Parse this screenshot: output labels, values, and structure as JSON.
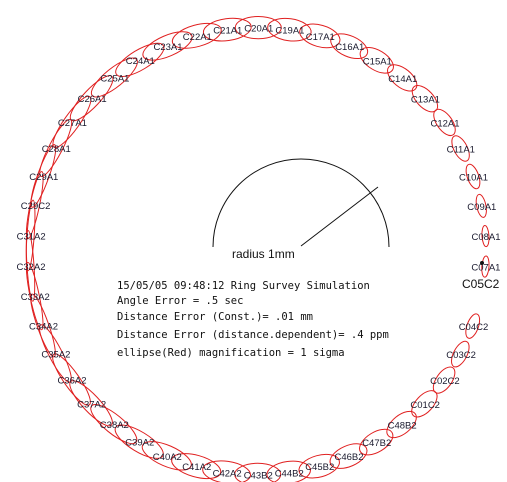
{
  "colors": {
    "ellipse": "#e02020",
    "text": "#111111",
    "arc": "#111111"
  },
  "info": {
    "line1": "15/05/05  09:48:12   Ring Survey Simulation",
    "line2": "Angle Error   =    .5 sec",
    "line3": "Distance Error (Const.)= .01 mm",
    "line4": "Distance  Error (distance.dependent)= .4 ppm",
    "line5": "ellipse(Red) magnification = 1 sigma"
  },
  "scale_label": "radius 1mm",
  "fixed_point": "C05C2",
  "points": [
    {
      "label": "C07A1"
    },
    {
      "label": "C08A1"
    },
    {
      "label": "C09A1"
    },
    {
      "label": "C10A1"
    },
    {
      "label": "C11A1"
    },
    {
      "label": "C12A1"
    },
    {
      "label": "C13A1"
    },
    {
      "label": "C14A1"
    },
    {
      "label": "C15A1"
    },
    {
      "label": "C16A1"
    },
    {
      "label": "C17A1"
    },
    {
      "label": "C19A1"
    },
    {
      "label": "C20A1"
    },
    {
      "label": "C21A1"
    },
    {
      "label": "C22A1"
    },
    {
      "label": "C23A1"
    },
    {
      "label": "C24A1"
    },
    {
      "label": "C25A1"
    },
    {
      "label": "C26A1"
    },
    {
      "label": "C27A1"
    },
    {
      "label": "C28A1"
    },
    {
      "label": "C29A1"
    },
    {
      "label": "C29C2"
    },
    {
      "label": "C31A2"
    },
    {
      "label": "C32A2"
    },
    {
      "label": "C33A2"
    },
    {
      "label": "C34A2"
    },
    {
      "label": "C35A2"
    },
    {
      "label": "C36A2"
    },
    {
      "label": "C37A2"
    },
    {
      "label": "C38A2"
    },
    {
      "label": "C39A2"
    },
    {
      "label": "C40A2"
    },
    {
      "label": "C41A2"
    },
    {
      "label": "C42A2"
    },
    {
      "label": "C43B2"
    },
    {
      "label": "C44B2"
    },
    {
      "label": "C45B2"
    },
    {
      "label": "C46B2"
    },
    {
      "label": "C47B2"
    },
    {
      "label": "C48B2"
    },
    {
      "label": "C01C2"
    },
    {
      "label": "C02C2"
    },
    {
      "label": "C03C2"
    },
    {
      "label": "C04C2"
    }
  ]
}
